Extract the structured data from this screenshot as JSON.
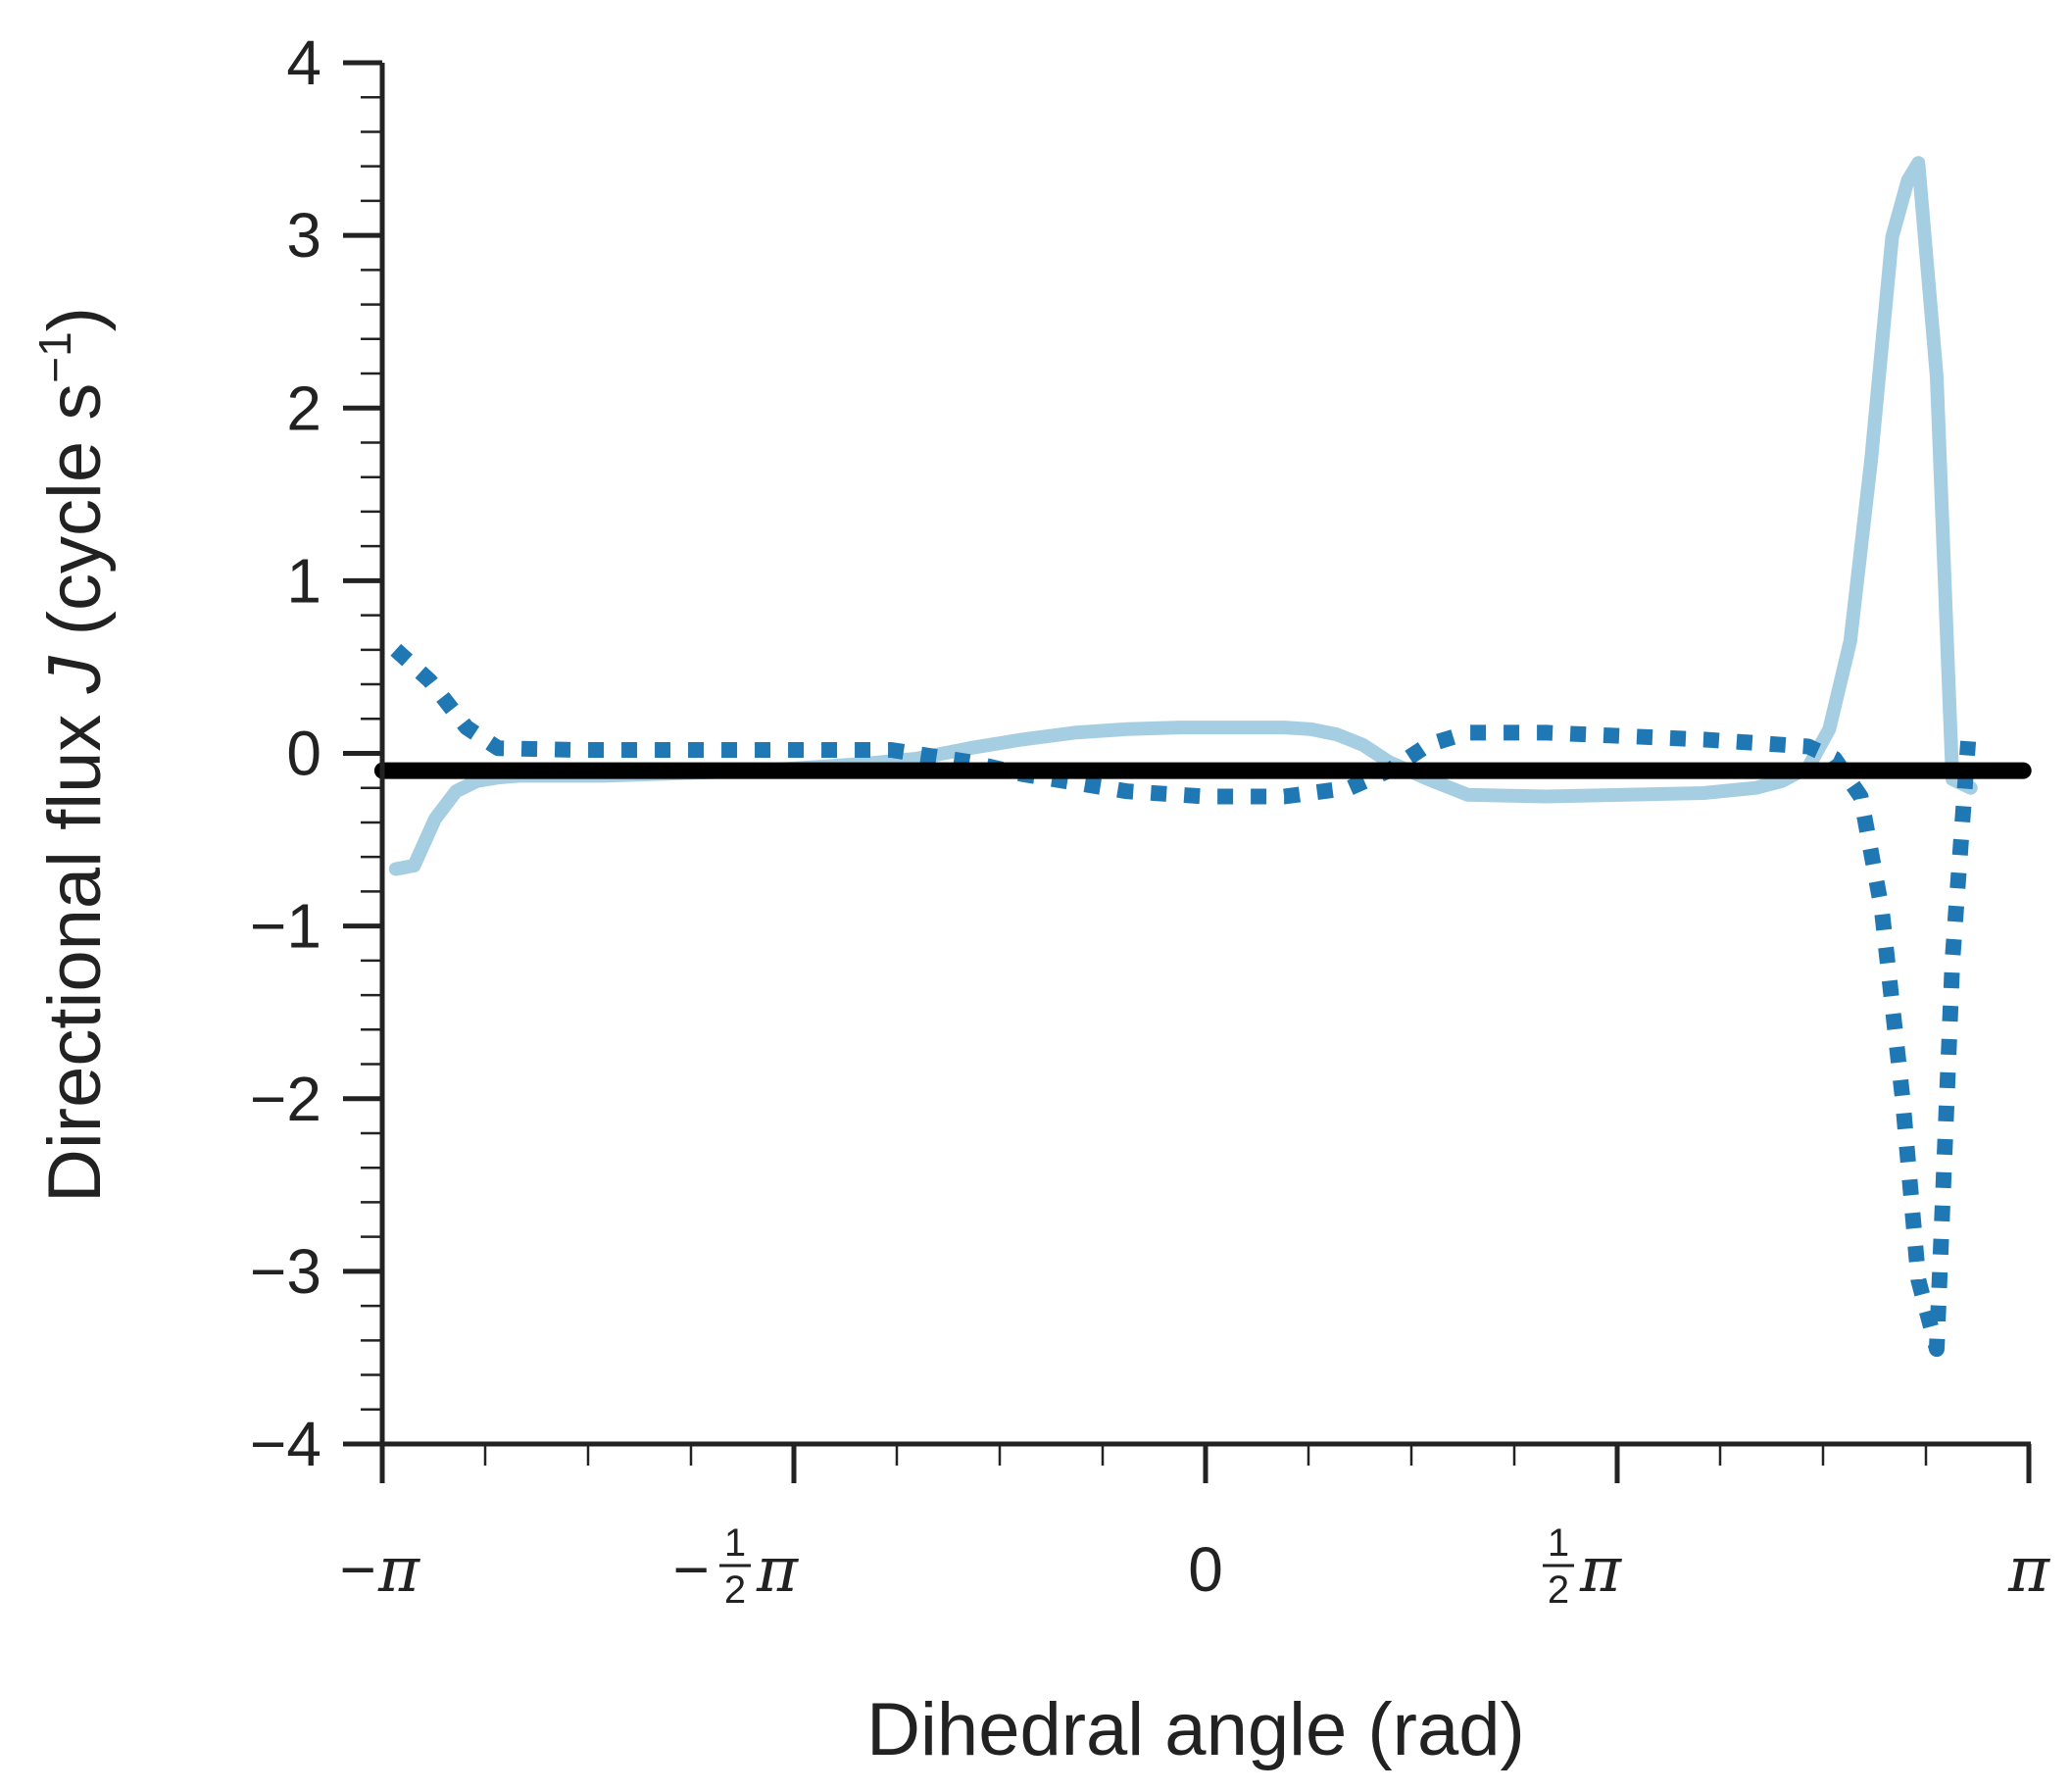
{
  "chart_data": {
    "type": "line",
    "title": "",
    "xlabel": "Dihedral angle (rad)",
    "ylabel": {
      "prefix": "Directional flux ",
      "symbol": "J",
      "unit": " (cycle s",
      "exponent": "−1",
      "close": ")"
    },
    "xlim": [
      -3.1416,
      3.1416
    ],
    "ylim": [
      -4,
      4
    ],
    "grid": false,
    "legend": "none",
    "x_ticks": [
      {
        "value": -3.1416,
        "sign": "−",
        "num": "",
        "den": "",
        "pi": "π"
      },
      {
        "value": -1.5708,
        "sign": "−",
        "num": "1",
        "den": "2",
        "pi": "π"
      },
      {
        "value": 0,
        "sign": "",
        "num": "",
        "den": "",
        "pi": "0"
      },
      {
        "value": 1.5708,
        "sign": "",
        "num": "1",
        "den": "2",
        "pi": "π"
      },
      {
        "value": 3.1416,
        "sign": "",
        "num": "",
        "den": "",
        "pi": "π"
      }
    ],
    "x_minor_step": 0.3927,
    "y_ticks": [
      {
        "value": 4,
        "label": "4"
      },
      {
        "value": 3,
        "label": "3"
      },
      {
        "value": 2,
        "label": "2"
      },
      {
        "value": 1,
        "label": "1"
      },
      {
        "value": 0,
        "label": "0"
      },
      {
        "value": -1,
        "label": "−1"
      },
      {
        "value": -2,
        "label": "−2"
      },
      {
        "value": -3,
        "label": "−3"
      },
      {
        "value": -4,
        "label": "−4"
      }
    ],
    "y_minor_step": 0.2,
    "series": [
      {
        "color": "#a6cee3",
        "style": "solid",
        "width": 14,
        "x": [
          -3.09,
          -3.02,
          -2.94,
          -2.86,
          -2.78,
          -2.7,
          -2.62,
          -2.55,
          -2.45,
          -2.3,
          -2.1,
          -1.9,
          -1.7,
          -1.5,
          -1.3,
          -1.1,
          -0.9,
          -0.7,
          -0.5,
          -0.3,
          -0.1,
          0.1,
          0.3,
          0.4,
          0.5,
          0.6,
          0.7,
          0.85,
          1.0,
          1.3,
          1.6,
          1.9,
          2.1,
          2.2,
          2.3,
          2.38,
          2.46,
          2.54,
          2.62,
          2.68,
          2.72,
          2.79,
          2.85,
          2.92
        ],
        "y": [
          -0.67,
          -0.65,
          -0.38,
          -0.22,
          -0.16,
          -0.14,
          -0.13,
          -0.13,
          -0.13,
          -0.13,
          -0.12,
          -0.11,
          -0.1,
          -0.08,
          -0.06,
          -0.03,
          0.03,
          0.08,
          0.12,
          0.14,
          0.15,
          0.15,
          0.15,
          0.14,
          0.11,
          0.05,
          -0.05,
          -0.15,
          -0.24,
          -0.25,
          -0.24,
          -0.23,
          -0.2,
          -0.16,
          -0.08,
          0.14,
          0.65,
          1.7,
          2.99,
          3.32,
          3.42,
          2.18,
          -0.15,
          -0.2
        ]
      },
      {
        "color": "#1f78b4",
        "style": "dotted",
        "width": 16,
        "x": [
          -3.09,
          -2.96,
          -2.82,
          -2.7,
          -2.4,
          -2.0,
          -1.6,
          -1.2,
          -0.9,
          -0.7,
          -0.5,
          -0.3,
          0.0,
          0.3,
          0.45,
          0.55,
          0.7,
          0.85,
          1.0,
          1.3,
          1.6,
          1.9,
          2.1,
          2.3,
          2.4,
          2.5,
          2.58,
          2.66,
          2.72,
          2.79,
          2.85,
          2.91
        ],
        "y": [
          0.6,
          0.42,
          0.15,
          0.03,
          0.02,
          0.02,
          0.02,
          0.02,
          -0.05,
          -0.12,
          -0.17,
          -0.22,
          -0.25,
          -0.25,
          -0.22,
          -0.2,
          -0.1,
          0.05,
          0.12,
          0.12,
          0.1,
          0.08,
          0.06,
          0.04,
          -0.03,
          -0.25,
          -0.9,
          -2.0,
          -3.05,
          -3.45,
          -1.2,
          0.07
        ]
      },
      {
        "color": "#000000",
        "style": "solid",
        "width": 17,
        "x": [
          -3.14,
          3.12
        ],
        "y": [
          -0.1,
          -0.1
        ]
      }
    ]
  }
}
